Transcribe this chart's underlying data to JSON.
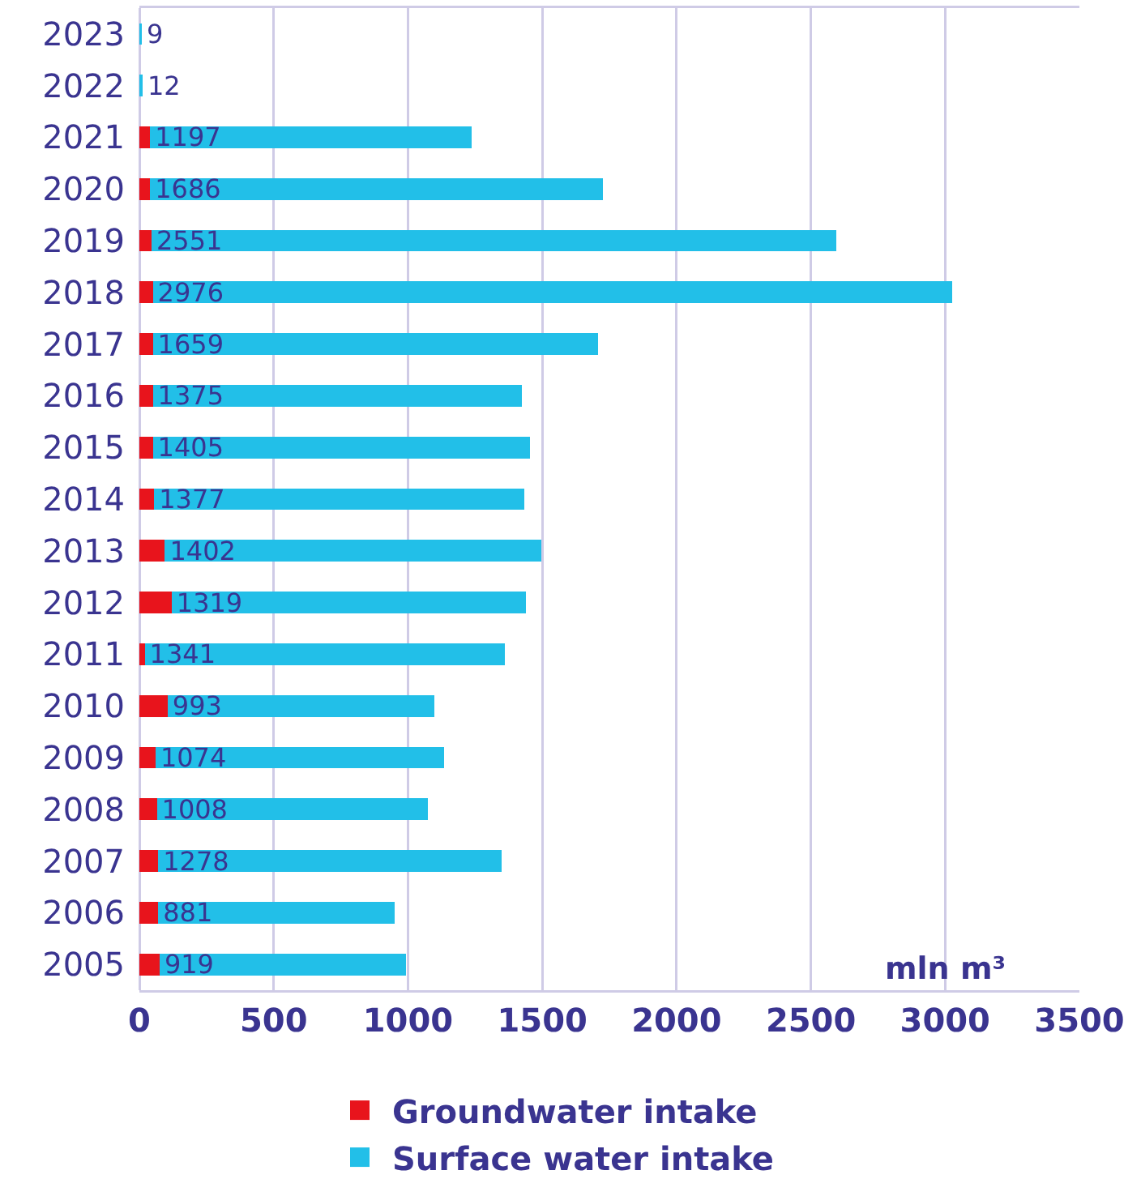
{
  "chart_data": {
    "type": "bar",
    "orientation": "horizontal",
    "stacked": true,
    "xlabel": "mln m³",
    "categories": [
      "2023",
      "2022",
      "2021",
      "2020",
      "2019",
      "2018",
      "2017",
      "2016",
      "2015",
      "2014",
      "2013",
      "2012",
      "2011",
      "2010",
      "2009",
      "2008",
      "2007",
      "2006",
      "2005"
    ],
    "series": [
      {
        "name": "Groundwater intake",
        "color": "#e8141c",
        "values": [
          null,
          null,
          40,
          40,
          45,
          50,
          50,
          50,
          50,
          55,
          95,
          120,
          20,
          105,
          60,
          65,
          70,
          70,
          75
        ]
      },
      {
        "name": "Surface water intake",
        "color": "#22bfe8",
        "values": [
          9,
          12,
          1197,
          1686,
          2551,
          2976,
          1659,
          1375,
          1405,
          1377,
          1402,
          1319,
          1341,
          993,
          1074,
          1008,
          1278,
          881,
          919
        ],
        "value_labels": [
          "9",
          "12",
          "1197",
          "1686",
          "2551",
          "2976",
          "1659",
          "1375",
          "1405",
          "1377",
          "1402",
          "1319",
          "1341",
          "993",
          "1074",
          "1008",
          "1278",
          "881",
          "919"
        ]
      }
    ],
    "xlim": [
      0,
      3500
    ],
    "xticks": [
      0,
      500,
      1000,
      1500,
      2000,
      2500,
      3000,
      3500
    ],
    "grid": "x",
    "legend": "bottom"
  }
}
